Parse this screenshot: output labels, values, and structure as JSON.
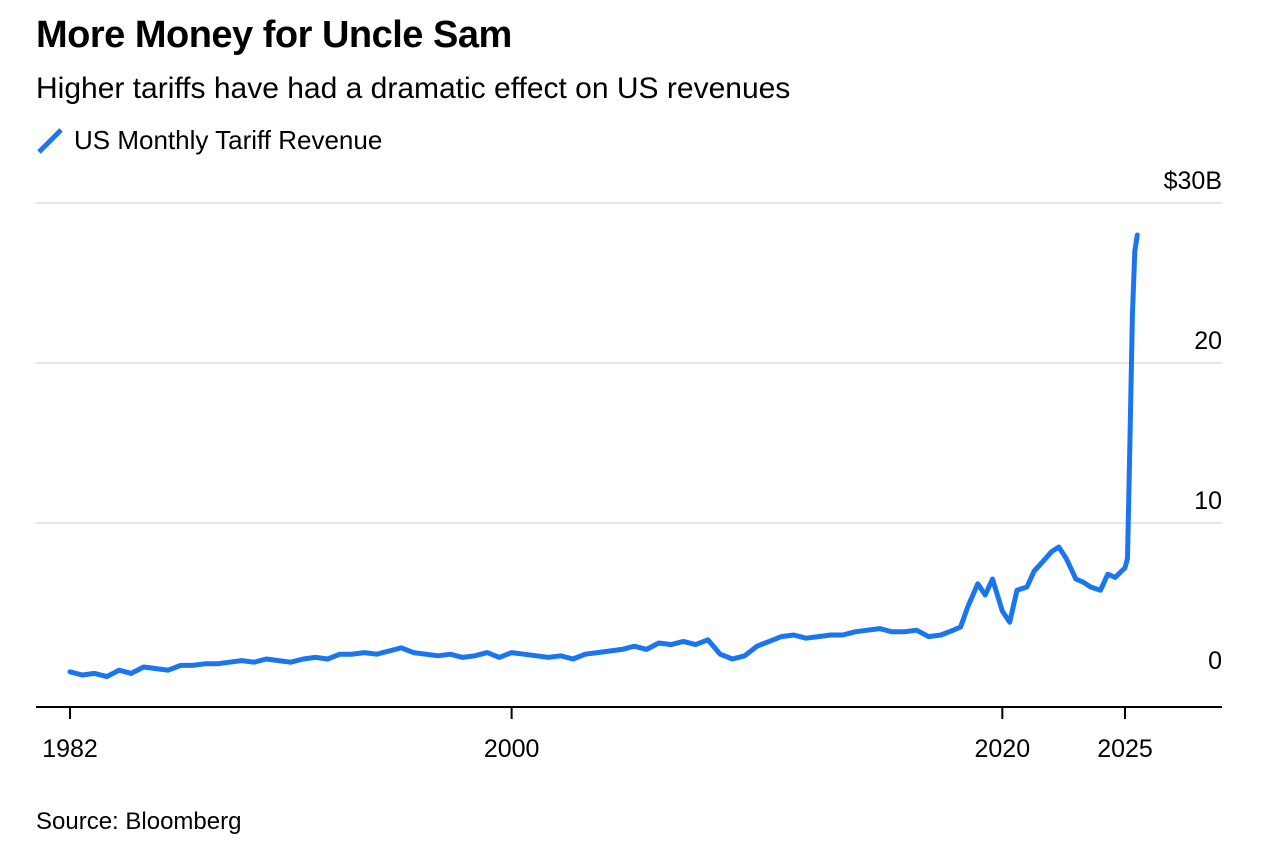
{
  "header": {
    "title": "More Money for Uncle Sam",
    "subtitle": "Higher tariffs have had a dramatic effect on US revenues"
  },
  "legend": {
    "series_label": "US Monthly Tariff Revenue",
    "color": "#1a75f0"
  },
  "footer": {
    "source": "Source: Bloomberg"
  },
  "chart_data": {
    "type": "line",
    "title": "More Money for Uncle Sam",
    "subtitle": "Higher tariffs have had a dramatic effect on US revenues",
    "xlabel": "",
    "ylabel": "",
    "y_unit": "$B",
    "xlim": [
      1982,
      2028
    ],
    "ylim": [
      -1.5,
      30
    ],
    "grid": true,
    "legend_position": "top-left",
    "x_ticks": [
      {
        "value": 1982,
        "label": "1982"
      },
      {
        "value": 2000,
        "label": "2000"
      },
      {
        "value": 2020,
        "label": "2020"
      },
      {
        "value": 2025,
        "label": "2025"
      }
    ],
    "y_ticks": [
      {
        "value": 0,
        "label": "0"
      },
      {
        "value": 10,
        "label": "10"
      },
      {
        "value": 20,
        "label": "20"
      },
      {
        "value": 30,
        "label": "$30B"
      }
    ],
    "series": [
      {
        "name": "US Monthly Tariff Revenue",
        "color": "#1a75f0",
        "x": [
          1982.0,
          1982.5,
          1983.0,
          1983.5,
          1984.0,
          1984.5,
          1985.0,
          1985.5,
          1986.0,
          1986.5,
          1987.0,
          1987.5,
          1988.0,
          1988.5,
          1989.0,
          1989.5,
          1990.0,
          1990.5,
          1991.0,
          1991.5,
          1992.0,
          1992.5,
          1993.0,
          1993.5,
          1994.0,
          1994.5,
          1995.0,
          1995.5,
          1996.0,
          1996.5,
          1997.0,
          1997.5,
          1998.0,
          1998.5,
          1999.0,
          1999.5,
          2000.0,
          2000.5,
          2001.0,
          2001.5,
          2002.0,
          2002.5,
          2003.0,
          2003.5,
          2004.0,
          2004.5,
          2005.0,
          2005.5,
          2006.0,
          2006.5,
          2007.0,
          2007.5,
          2008.0,
          2008.5,
          2009.0,
          2009.5,
          2010.0,
          2010.5,
          2011.0,
          2011.5,
          2012.0,
          2012.5,
          2013.0,
          2013.5,
          2014.0,
          2014.5,
          2015.0,
          2015.5,
          2016.0,
          2016.5,
          2017.0,
          2017.5,
          2018.0,
          2018.3,
          2018.6,
          2019.0,
          2019.3,
          2019.6,
          2020.0,
          2020.3,
          2020.6,
          2021.0,
          2021.3,
          2021.6,
          2022.0,
          2022.3,
          2022.6,
          2023.0,
          2023.3,
          2023.6,
          2024.0,
          2024.3,
          2024.6,
          2025.0,
          2025.1,
          2025.2,
          2025.3,
          2025.4,
          2025.5
        ],
        "values": [
          0.7,
          0.5,
          0.6,
          0.4,
          0.8,
          0.6,
          1.0,
          0.9,
          0.8,
          1.1,
          1.1,
          1.2,
          1.2,
          1.3,
          1.4,
          1.3,
          1.5,
          1.4,
          1.3,
          1.5,
          1.6,
          1.5,
          1.8,
          1.8,
          1.9,
          1.8,
          2.0,
          2.2,
          1.9,
          1.8,
          1.7,
          1.8,
          1.6,
          1.7,
          1.9,
          1.6,
          1.9,
          1.8,
          1.7,
          1.6,
          1.7,
          1.5,
          1.8,
          1.9,
          2.0,
          2.1,
          2.3,
          2.1,
          2.5,
          2.4,
          2.6,
          2.4,
          2.7,
          1.8,
          1.5,
          1.7,
          2.3,
          2.6,
          2.9,
          3.0,
          2.8,
          2.9,
          3.0,
          3.0,
          3.2,
          3.3,
          3.4,
          3.2,
          3.2,
          3.3,
          2.9,
          3.0,
          3.3,
          3.5,
          4.8,
          6.2,
          5.5,
          6.5,
          4.5,
          3.8,
          5.8,
          6.0,
          7.0,
          7.5,
          8.2,
          8.5,
          7.8,
          6.5,
          6.3,
          6.0,
          5.8,
          6.8,
          6.6,
          7.2,
          7.8,
          15.0,
          23.0,
          27.0,
          28.0
        ]
      }
    ]
  }
}
